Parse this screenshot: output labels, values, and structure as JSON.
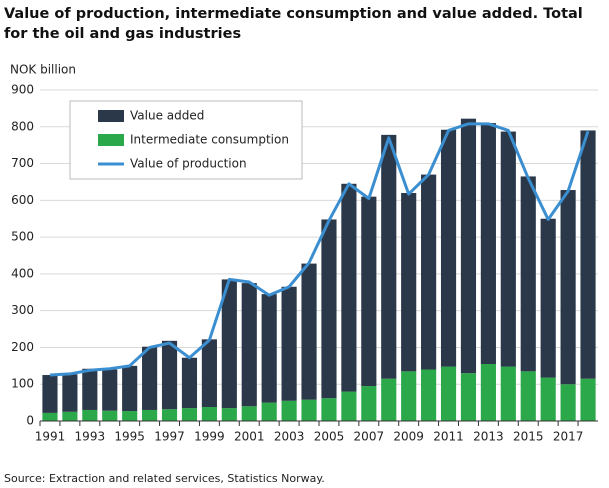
{
  "chart_data": {
    "type": "bar",
    "title": "Value of production, intermediate consumption and value added. Total for the oil and gas industries",
    "y_label": "NOK billion",
    "source": "Source: Extraction and related services, Statistics Norway.",
    "categories": [
      "1991",
      null,
      "1993",
      null,
      "1995",
      null,
      "1997",
      null,
      "1999",
      null,
      "2001",
      null,
      "2003",
      null,
      "2005",
      null,
      "2007",
      null,
      "2009",
      null,
      "2011",
      null,
      "2013",
      null,
      "2015",
      null,
      "2017",
      null
    ],
    "series": [
      {
        "name": "Value added",
        "type": "bar",
        "color": "#2b3849",
        "values": [
          103,
          102,
          112,
          112,
          123,
          172,
          186,
          137,
          184,
          350,
          335,
          295,
          310,
          370,
          486,
          565,
          515,
          663,
          485,
          530,
          644,
          692,
          655,
          639,
          530,
          432,
          528,
          675
        ]
      },
      {
        "name": "Intermediate consumption",
        "type": "bar",
        "color": "#2aa84a",
        "values": [
          22,
          25,
          30,
          28,
          27,
          30,
          32,
          35,
          38,
          35,
          40,
          50,
          55,
          58,
          62,
          80,
          95,
          115,
          135,
          140,
          148,
          130,
          155,
          148,
          135,
          118,
          100,
          115
        ]
      },
      {
        "name": "Value of production",
        "type": "line",
        "color": "#3b8fd0",
        "values": [
          125,
          128,
          138,
          142,
          150,
          200,
          212,
          172,
          220,
          385,
          378,
          342,
          365,
          430,
          545,
          645,
          605,
          770,
          617,
          670,
          790,
          808,
          808,
          790,
          660,
          548,
          625,
          788
        ]
      }
    ],
    "ylim": [
      0,
      900
    ],
    "yticks": [
      0,
      100,
      200,
      300,
      400,
      500,
      600,
      700,
      800,
      900
    ],
    "grid": true,
    "legend": "upper left"
  }
}
